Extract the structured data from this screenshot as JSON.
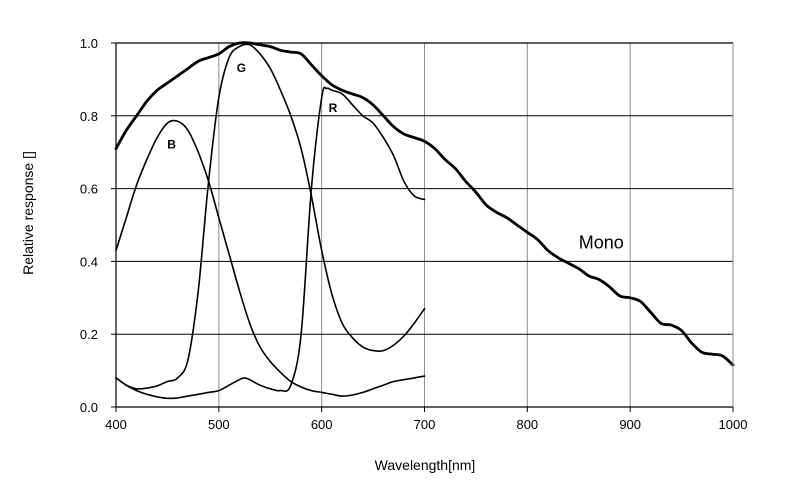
{
  "chart_data": {
    "type": "line",
    "xlabel": "Wavelength[nm]",
    "ylabel": "Relative response []",
    "xlim": [
      400,
      1000
    ],
    "ylim": [
      0,
      1.0
    ],
    "x_ticks": [
      "400",
      "500",
      "600",
      "700",
      "800",
      "900",
      "1000"
    ],
    "y_ticks": [
      "0.0",
      "0.2",
      "0.4",
      "0.6",
      "0.8",
      "1.0"
    ],
    "grid": true,
    "series": [
      {
        "name": "Mono",
        "points": [
          [
            400,
            0.71
          ],
          [
            410,
            0.76
          ],
          [
            420,
            0.8
          ],
          [
            430,
            0.84
          ],
          [
            440,
            0.87
          ],
          [
            450,
            0.89
          ],
          [
            460,
            0.91
          ],
          [
            470,
            0.93
          ],
          [
            480,
            0.95
          ],
          [
            490,
            0.96
          ],
          [
            500,
            0.97
          ],
          [
            510,
            0.99
          ],
          [
            520,
            1.0
          ],
          [
            530,
            1.0
          ],
          [
            540,
            0.995
          ],
          [
            550,
            0.99
          ],
          [
            560,
            0.98
          ],
          [
            570,
            0.975
          ],
          [
            580,
            0.97
          ],
          [
            590,
            0.94
          ],
          [
            600,
            0.91
          ],
          [
            610,
            0.885
          ],
          [
            620,
            0.87
          ],
          [
            630,
            0.86
          ],
          [
            640,
            0.85
          ],
          [
            650,
            0.83
          ],
          [
            660,
            0.8
          ],
          [
            670,
            0.77
          ],
          [
            680,
            0.75
          ],
          [
            690,
            0.74
          ],
          [
            700,
            0.73
          ],
          [
            710,
            0.71
          ],
          [
            720,
            0.68
          ],
          [
            730,
            0.655
          ],
          [
            740,
            0.62
          ],
          [
            750,
            0.59
          ],
          [
            760,
            0.555
          ],
          [
            770,
            0.535
          ],
          [
            780,
            0.52
          ],
          [
            790,
            0.5
          ],
          [
            800,
            0.48
          ],
          [
            810,
            0.46
          ],
          [
            820,
            0.43
          ],
          [
            830,
            0.41
          ],
          [
            840,
            0.395
          ],
          [
            850,
            0.38
          ],
          [
            860,
            0.36
          ],
          [
            870,
            0.35
          ],
          [
            880,
            0.33
          ],
          [
            890,
            0.305
          ],
          [
            900,
            0.3
          ],
          [
            910,
            0.29
          ],
          [
            920,
            0.26
          ],
          [
            930,
            0.23
          ],
          [
            940,
            0.225
          ],
          [
            950,
            0.21
          ],
          [
            960,
            0.175
          ],
          [
            970,
            0.15
          ],
          [
            980,
            0.145
          ],
          [
            990,
            0.14
          ],
          [
            1000,
            0.115
          ]
        ]
      },
      {
        "name": "B",
        "points": [
          [
            400,
            0.43
          ],
          [
            410,
            0.52
          ],
          [
            420,
            0.61
          ],
          [
            430,
            0.68
          ],
          [
            440,
            0.74
          ],
          [
            450,
            0.78
          ],
          [
            460,
            0.785
          ],
          [
            470,
            0.76
          ],
          [
            480,
            0.7
          ],
          [
            490,
            0.62
          ],
          [
            500,
            0.52
          ],
          [
            510,
            0.42
          ],
          [
            520,
            0.32
          ],
          [
            530,
            0.23
          ],
          [
            540,
            0.165
          ],
          [
            550,
            0.125
          ],
          [
            560,
            0.095
          ],
          [
            570,
            0.07
          ],
          [
            580,
            0.055
          ],
          [
            590,
            0.045
          ],
          [
            600,
            0.04
          ],
          [
            610,
            0.035
          ],
          [
            620,
            0.03
          ],
          [
            630,
            0.033
          ],
          [
            640,
            0.04
          ],
          [
            650,
            0.05
          ],
          [
            660,
            0.06
          ],
          [
            670,
            0.07
          ],
          [
            680,
            0.075
          ],
          [
            690,
            0.08
          ],
          [
            700,
            0.085
          ]
        ]
      },
      {
        "name": "G",
        "points": [
          [
            400,
            0.08
          ],
          [
            410,
            0.06
          ],
          [
            420,
            0.05
          ],
          [
            430,
            0.052
          ],
          [
            440,
            0.058
          ],
          [
            450,
            0.07
          ],
          [
            460,
            0.08
          ],
          [
            470,
            0.13
          ],
          [
            480,
            0.32
          ],
          [
            490,
            0.62
          ],
          [
            500,
            0.85
          ],
          [
            510,
            0.96
          ],
          [
            520,
            0.99
          ],
          [
            530,
            0.995
          ],
          [
            540,
            0.97
          ],
          [
            550,
            0.93
          ],
          [
            560,
            0.87
          ],
          [
            570,
            0.8
          ],
          [
            580,
            0.71
          ],
          [
            590,
            0.58
          ],
          [
            600,
            0.43
          ],
          [
            610,
            0.31
          ],
          [
            620,
            0.23
          ],
          [
            630,
            0.19
          ],
          [
            640,
            0.165
          ],
          [
            650,
            0.155
          ],
          [
            660,
            0.155
          ],
          [
            670,
            0.17
          ],
          [
            680,
            0.195
          ],
          [
            690,
            0.23
          ],
          [
            700,
            0.27
          ]
        ]
      },
      {
        "name": "R",
        "points": [
          [
            400,
            0.08
          ],
          [
            410,
            0.06
          ],
          [
            420,
            0.045
          ],
          [
            430,
            0.035
          ],
          [
            440,
            0.028
          ],
          [
            450,
            0.024
          ],
          [
            460,
            0.025
          ],
          [
            470,
            0.03
          ],
          [
            480,
            0.035
          ],
          [
            490,
            0.04
          ],
          [
            500,
            0.045
          ],
          [
            510,
            0.06
          ],
          [
            520,
            0.075
          ],
          [
            525,
            0.08
          ],
          [
            530,
            0.075
          ],
          [
            540,
            0.06
          ],
          [
            550,
            0.05
          ],
          [
            560,
            0.045
          ],
          [
            570,
            0.06
          ],
          [
            580,
            0.2
          ],
          [
            590,
            0.6
          ],
          [
            600,
            0.85
          ],
          [
            605,
            0.875
          ],
          [
            610,
            0.87
          ],
          [
            620,
            0.86
          ],
          [
            630,
            0.83
          ],
          [
            640,
            0.8
          ],
          [
            650,
            0.78
          ],
          [
            660,
            0.74
          ],
          [
            670,
            0.69
          ],
          [
            680,
            0.62
          ],
          [
            690,
            0.58
          ],
          [
            700,
            0.57
          ]
        ]
      }
    ],
    "annotations": [
      {
        "text": "B",
        "x": 454,
        "y": 0.71
      },
      {
        "text": "G",
        "x": 522,
        "y": 0.92
      },
      {
        "text": "R",
        "x": 611,
        "y": 0.81
      },
      {
        "text": "Mono",
        "x": 850,
        "y": 0.435
      }
    ],
    "colors": {
      "line": "#000000",
      "grid": "#8c8c8c",
      "background": "#ffffff"
    }
  }
}
